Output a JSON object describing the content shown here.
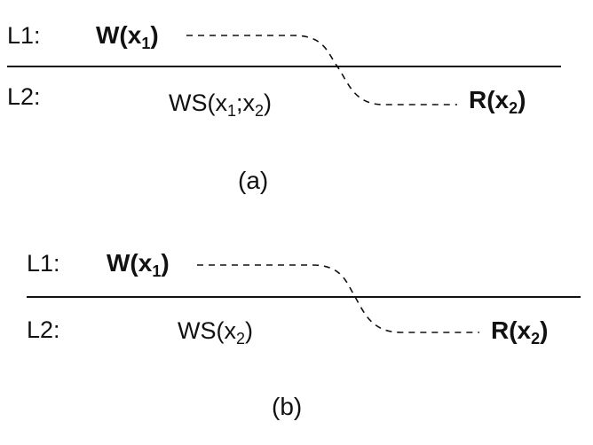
{
  "panels": [
    {
      "caption": "(a)",
      "lane1": {
        "label": "L1:",
        "write": {
          "op": "W(x",
          "sub": "1",
          "close": ")"
        }
      },
      "lane2": {
        "label": "L2:",
        "ws": {
          "prefix": "WS(x",
          "sub1": "1",
          "mid": ";x",
          "sub2": "2",
          "close": ")"
        },
        "read": {
          "op": "R(x",
          "sub": "2",
          "close": ")"
        }
      }
    },
    {
      "caption": "(b)",
      "lane1": {
        "label": "L1:",
        "write": {
          "op": "W(x",
          "sub": "1",
          "close": ")"
        }
      },
      "lane2": {
        "label": "L2:",
        "ws": {
          "prefix": "WS(x",
          "sub1": "2",
          "close": ")"
        },
        "read": {
          "op": "R(x",
          "sub": "2",
          "close": ")"
        }
      }
    }
  ]
}
